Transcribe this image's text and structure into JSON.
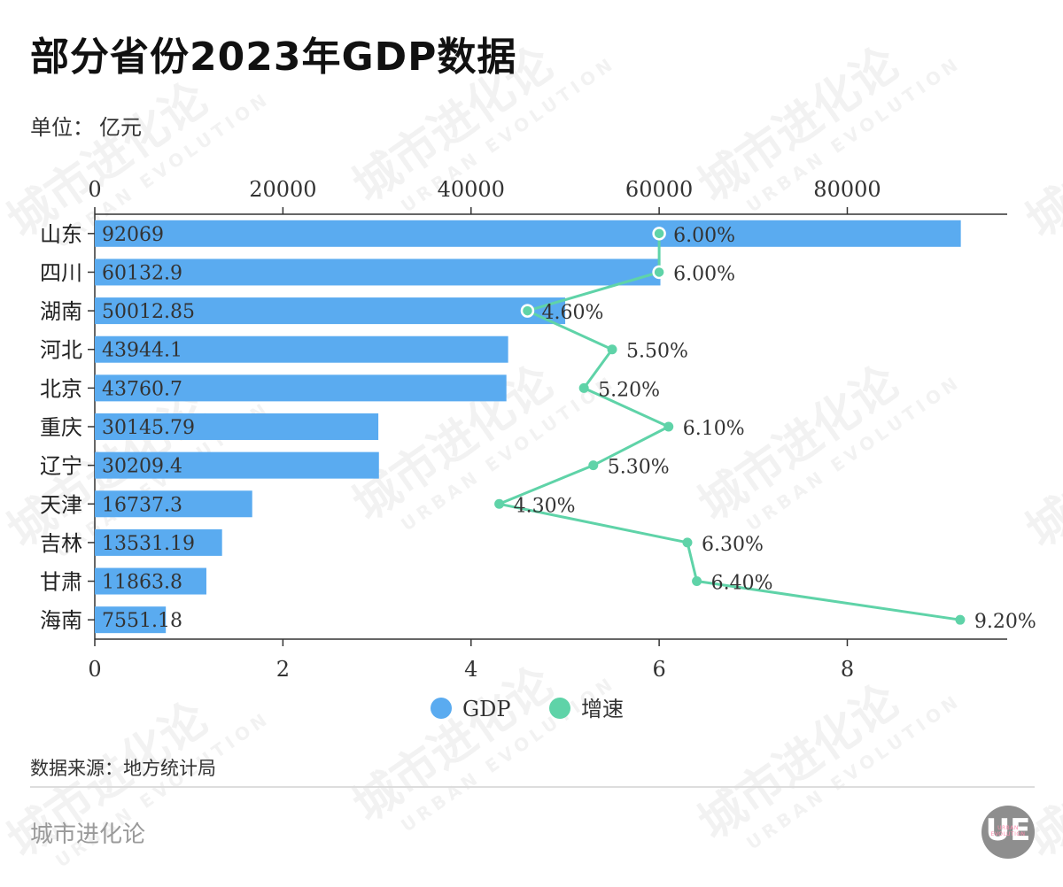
{
  "header": {
    "title": "部分省份2023年GDP数据",
    "unit_label": "单位：",
    "unit_value": "亿元"
  },
  "chart_data": {
    "type": "bar",
    "categories": [
      "山东",
      "四川",
      "湖南",
      "河北",
      "北京",
      "重庆",
      "辽宁",
      "天津",
      "吉林",
      "甘肃",
      "海南"
    ],
    "series": [
      {
        "name": "GDP",
        "type": "bar",
        "values": [
          92069,
          60132.9,
          50012.85,
          43944.1,
          43760.7,
          30145.79,
          30209.4,
          16737.3,
          13531.19,
          11863.8,
          7551.18
        ],
        "labels": [
          "92069",
          "60132.9",
          "50012.85",
          "43944.1",
          "43760.7",
          "30145.79",
          "30209.4",
          "16737.3",
          "13531.19",
          "11863.8",
          "7551.18"
        ],
        "axis": "top",
        "xlim": [
          0,
          97000
        ],
        "ticks": [
          0,
          20000,
          40000,
          60000,
          80000
        ],
        "tick_labels": [
          "0",
          "20000",
          "40000",
          "60000",
          "80000"
        ]
      },
      {
        "name": "增速",
        "type": "line",
        "values": [
          6.0,
          6.0,
          4.6,
          5.5,
          5.2,
          6.1,
          5.3,
          4.3,
          6.3,
          6.4,
          9.2
        ],
        "labels": [
          "6.00%",
          "6.00%",
          "4.60%",
          "5.50%",
          "5.20%",
          "6.10%",
          "5.30%",
          "4.30%",
          "6.30%",
          "6.40%",
          "9.20%"
        ],
        "axis": "bottom",
        "xlim": [
          0,
          9.7
        ],
        "ticks": [
          0,
          2,
          4,
          6,
          8
        ],
        "tick_labels": [
          "0",
          "2",
          "4",
          "6",
          "8"
        ]
      }
    ],
    "colors": {
      "bar": "#5aabf0",
      "line": "#5fd3a8",
      "axis": "#333333"
    },
    "legend": {
      "position": "bottom",
      "items": [
        "GDP",
        "增速"
      ]
    },
    "grid": false
  },
  "footer": {
    "source_label": "数据来源：",
    "source_value": "地方统计局",
    "brand": "城市进化论",
    "logo_text": "UE",
    "logo_sub": "URBAN EVOLUTION"
  },
  "watermark": {
    "text": "城市进化论",
    "sub": "URBAN EVOLUTION"
  }
}
